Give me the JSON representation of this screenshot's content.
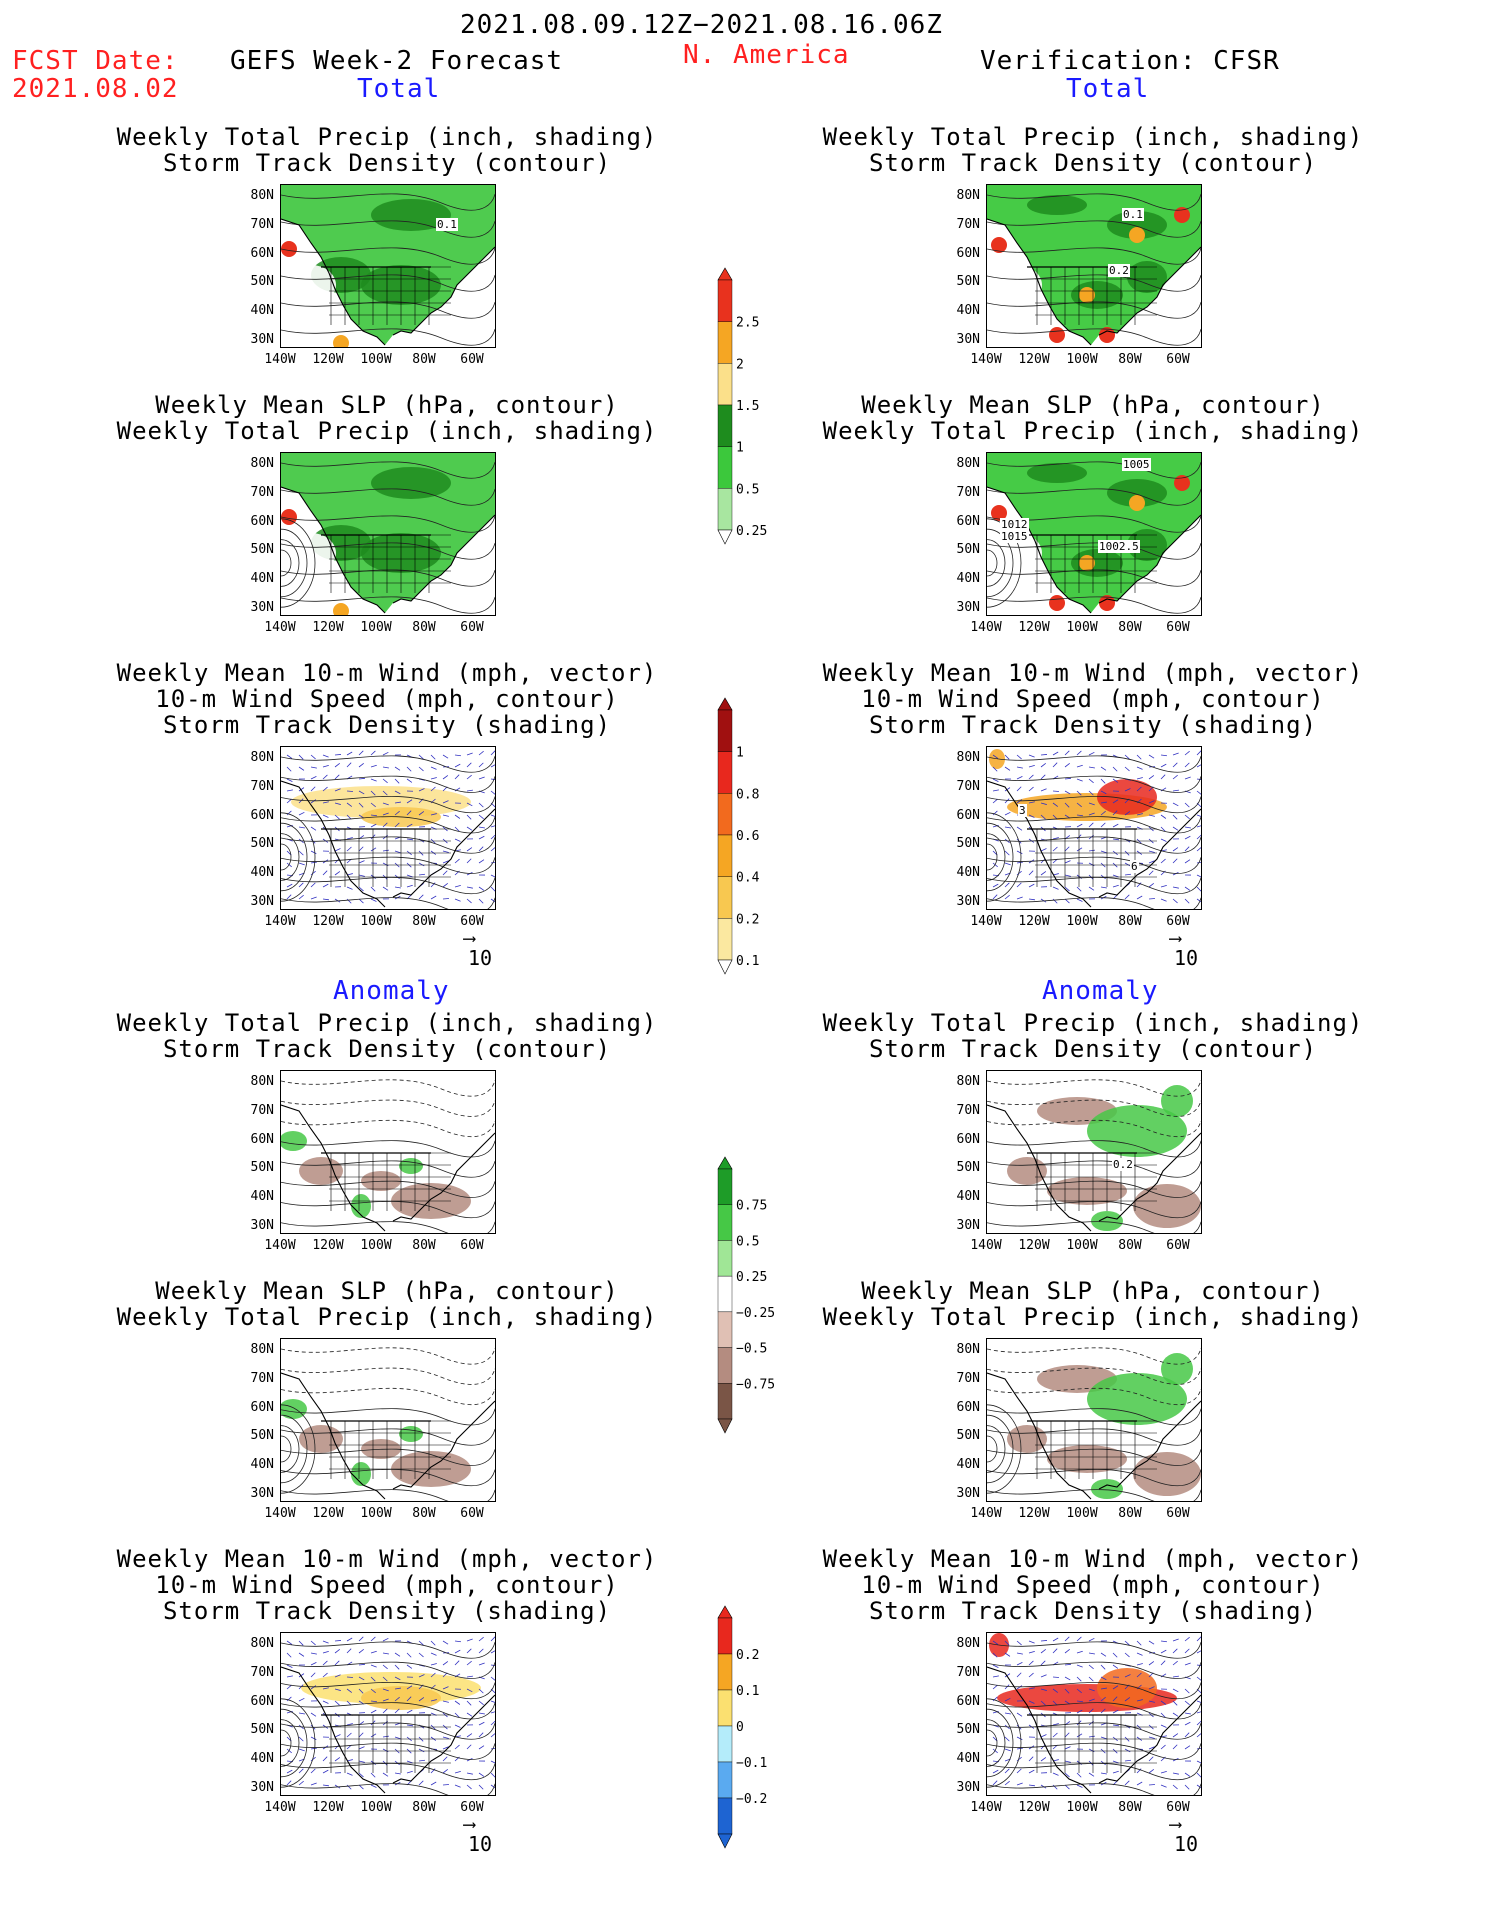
{
  "header": {
    "time_range": "2021.08.09.12Z−2021.08.16.06Z",
    "fcst_label": "FCST Date:",
    "fcst_date": "2021.08.02",
    "left_title": "GEFS Week-2 Forecast",
    "region": "N. America",
    "right_title": "Verification: CFSR"
  },
  "sections": {
    "total": "Total",
    "anomaly": "Anomaly"
  },
  "panel_titles": {
    "precip_track": [
      "Weekly Total Precip (inch, shading)",
      "Storm Track Density (contour)"
    ],
    "slp_precip": [
      "Weekly Mean SLP (hPa, contour)",
      "Weekly Total Precip (inch, shading)"
    ],
    "wind_track": [
      "Weekly Mean 10-m Wind (mph, vector)",
      "10-m Wind Speed (mph, contour)",
      "Storm Track Density (shading)"
    ]
  },
  "axes": {
    "lat_labels": [
      "80N",
      "70N",
      "60N",
      "50N",
      "40N",
      "30N"
    ],
    "lon_labels": [
      "140W",
      "120W",
      "100W",
      "80W",
      "60W"
    ]
  },
  "vector_ref": "10",
  "contour_labels": {
    "left_total_precip": "0.1",
    "right_total_precip_a": "0.1",
    "right_total_precip_b": "0.2",
    "right_slp_a": "1005",
    "right_slp_b": "1002.5",
    "right_slp_c": "1012",
    "right_slp_d": "1015",
    "right_anom_precip": "0.2",
    "wind_a": "3",
    "wind_b": "6"
  },
  "colorbars": {
    "precip_total": {
      "labels": [
        "2.5",
        "2",
        "1.5",
        "1",
        "0.5",
        "0.25"
      ],
      "colors": [
        "#e8321e",
        "#f5a623",
        "#fbe08a",
        "#1e8c1e",
        "#3cc83c",
        "#a8e6a0"
      ]
    },
    "track_total": {
      "labels": [
        "1",
        "0.8",
        "0.6",
        "0.4",
        "0.2",
        "0.1"
      ],
      "colors": [
        "#a01010",
        "#e8281e",
        "#f26a1e",
        "#f5a623",
        "#f8c850",
        "#fbe8a0"
      ]
    },
    "precip_anom": {
      "labels": [
        "0.75",
        "0.5",
        "0.25",
        "−0.25",
        "−0.5",
        "−0.75"
      ],
      "colors": [
        "#1e9c28",
        "#46c846",
        "#a0e696",
        "#ffffff",
        "#e0c0b4",
        "#b48c80",
        "#7a5546"
      ]
    },
    "track_anom": {
      "labels": [
        "0.2",
        "0.1",
        "0",
        "−0.1",
        "−0.2"
      ],
      "colors": [
        "#e8281e",
        "#f5a623",
        "#fbe070",
        "#b4ecfa",
        "#5aaaf0",
        "#1e64d2"
      ]
    }
  }
}
